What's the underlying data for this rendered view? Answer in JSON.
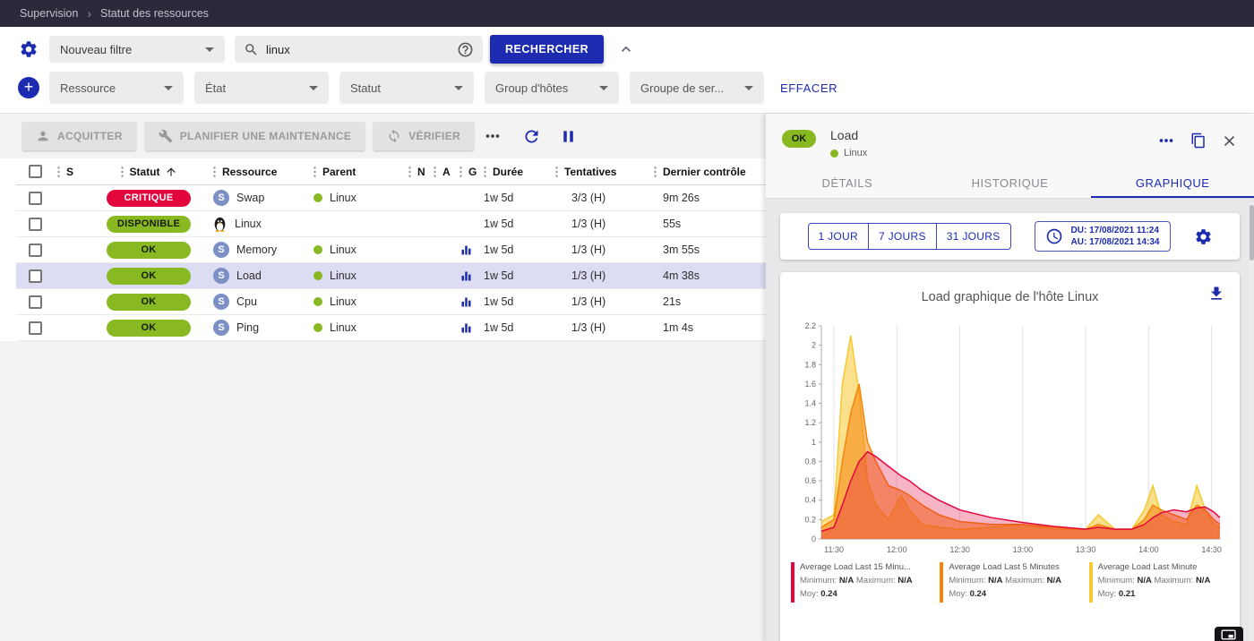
{
  "breadcrumb": {
    "section": "Supervision",
    "page": "Statut des ressources",
    "separator": "›"
  },
  "icons": {
    "add": "+"
  },
  "colors": {
    "accent": "#1c2bb0",
    "critical": "#e2063c",
    "success": "#88b922",
    "selected_row": "#dcdcf2"
  },
  "filter": {
    "saved_filter_value": "Nouveau filtre",
    "search_value": "linux",
    "search_button_label": "RECHERCHER",
    "criteria_chips": [
      "Ressource",
      "État",
      "Statut",
      "Group d'hôtes",
      "Groupe de ser..."
    ],
    "clear_button_label": "EFFACER"
  },
  "toolbar": {
    "acknowledge_label": "ACQUITTER",
    "maintenance_label": "PLANIFIER UNE MAINTENANCE",
    "check_label": "VÉRIFIER"
  },
  "table": {
    "headers": {
      "severity": "S",
      "status": "Statut",
      "resource": "Ressource",
      "parent": "Parent",
      "n": "N",
      "a": "A",
      "g": "G",
      "duration": "Durée",
      "tries": "Tentatives",
      "last_check": "Dernier contrôle"
    },
    "rows": [
      {
        "status": "CRITIQUE",
        "status_type": "critical",
        "kind": "service",
        "resource": "Swap",
        "parent": "Linux",
        "has_graph": false,
        "duration": "1w 5d",
        "tries": "3/3 (H)",
        "last_check": "9m 26s",
        "selected": false
      },
      {
        "status": "DISPONIBLE",
        "status_type": "ok",
        "kind": "host",
        "resource": "Linux",
        "parent": "",
        "has_graph": false,
        "duration": "1w 5d",
        "tries": "1/3 (H)",
        "last_check": "55s",
        "selected": false
      },
      {
        "status": "OK",
        "status_type": "ok",
        "kind": "service",
        "resource": "Memory",
        "parent": "Linux",
        "has_graph": true,
        "duration": "1w 5d",
        "tries": "1/3 (H)",
        "last_check": "3m 55s",
        "selected": false
      },
      {
        "status": "OK",
        "status_type": "ok",
        "kind": "service",
        "resource": "Load",
        "parent": "Linux",
        "has_graph": true,
        "duration": "1w 5d",
        "tries": "1/3 (H)",
        "last_check": "4m 38s",
        "selected": true
      },
      {
        "status": "OK",
        "status_type": "ok",
        "kind": "service",
        "resource": "Cpu",
        "parent": "Linux",
        "has_graph": true,
        "duration": "1w 5d",
        "tries": "1/3 (H)",
        "last_check": "21s",
        "selected": false
      },
      {
        "status": "OK",
        "status_type": "ok",
        "kind": "service",
        "resource": "Ping",
        "parent": "Linux",
        "has_graph": true,
        "duration": "1w 5d",
        "tries": "1/3 (H)",
        "last_check": "1m 4s",
        "selected": false
      }
    ]
  },
  "panel": {
    "status_chip": "OK",
    "title": "Load",
    "host": "Linux",
    "tabs": [
      "DÉTAILS",
      "HISTORIQUE",
      "GRAPHIQUE"
    ],
    "active_tab_index": 2,
    "range_buttons": [
      "1 JOUR",
      "7 JOURS",
      "31 JOURS"
    ],
    "period_from": "DU: 17/08/2021 11:24",
    "period_to": "AU: 17/08/2021 14:34"
  },
  "chart_data": {
    "type": "area",
    "title": "Load graphique de l'hôte Linux",
    "xlabel": "",
    "ylabel": "",
    "ylim": [
      0,
      2.2
    ],
    "y_ticks": [
      0,
      0.2,
      0.4,
      0.6,
      0.8,
      1,
      1.2,
      1.4,
      1.6,
      1.8,
      2,
      2.2
    ],
    "x_start": "11:24",
    "x_end": "14:34",
    "x_ticks": [
      "11:30",
      "12:00",
      "12:30",
      "13:00",
      "13:30",
      "14:00",
      "14:30"
    ],
    "grid": "vertical",
    "legend_position": "bottom",
    "x": [
      "11:24",
      "11:30",
      "11:34",
      "11:38",
      "11:42",
      "11:46",
      "11:50",
      "11:56",
      "12:02",
      "12:06",
      "12:12",
      "12:20",
      "12:30",
      "12:45",
      "13:00",
      "13:15",
      "13:30",
      "13:36",
      "13:44",
      "13:52",
      "13:58",
      "14:02",
      "14:06",
      "14:12",
      "14:18",
      "14:23",
      "14:27",
      "14:31",
      "14:34"
    ],
    "series": [
      {
        "name": "Average Load Last 15 Minu...",
        "color": "#e2063c",
        "fill_opacity": 0.3,
        "minimum": "N/A",
        "maximum": "N/A",
        "average": "0.24",
        "values": [
          0.08,
          0.12,
          0.35,
          0.6,
          0.8,
          0.9,
          0.85,
          0.75,
          0.65,
          0.6,
          0.5,
          0.4,
          0.3,
          0.22,
          0.17,
          0.13,
          0.1,
          0.12,
          0.1,
          0.1,
          0.15,
          0.22,
          0.27,
          0.3,
          0.28,
          0.32,
          0.33,
          0.28,
          0.22
        ]
      },
      {
        "name": "Average Load Last 5 Minutes",
        "color": "#f78409",
        "fill_opacity": 0.55,
        "minimum": "N/A",
        "maximum": "N/A",
        "average": "0.24",
        "values": [
          0.12,
          0.2,
          0.8,
          1.3,
          1.6,
          1.0,
          0.8,
          0.55,
          0.5,
          0.45,
          0.35,
          0.25,
          0.18,
          0.15,
          0.15,
          0.12,
          0.1,
          0.15,
          0.1,
          0.1,
          0.2,
          0.35,
          0.3,
          0.25,
          0.2,
          0.35,
          0.3,
          0.2,
          0.15
        ]
      },
      {
        "name": "Average Load Last Minute",
        "color": "#f7c831",
        "fill_opacity": 0.55,
        "minimum": "N/A",
        "maximum": "N/A",
        "average": "0.21",
        "values": [
          0.18,
          0.25,
          1.6,
          2.1,
          1.5,
          0.6,
          0.35,
          0.2,
          0.45,
          0.3,
          0.15,
          0.12,
          0.1,
          0.12,
          0.15,
          0.1,
          0.1,
          0.25,
          0.1,
          0.1,
          0.3,
          0.55,
          0.25,
          0.18,
          0.15,
          0.55,
          0.3,
          0.15,
          0.12
        ]
      }
    ],
    "legend_labels": {
      "minimum": "Minimum:",
      "maximum": "Maximum:",
      "average": "Moy:"
    }
  }
}
